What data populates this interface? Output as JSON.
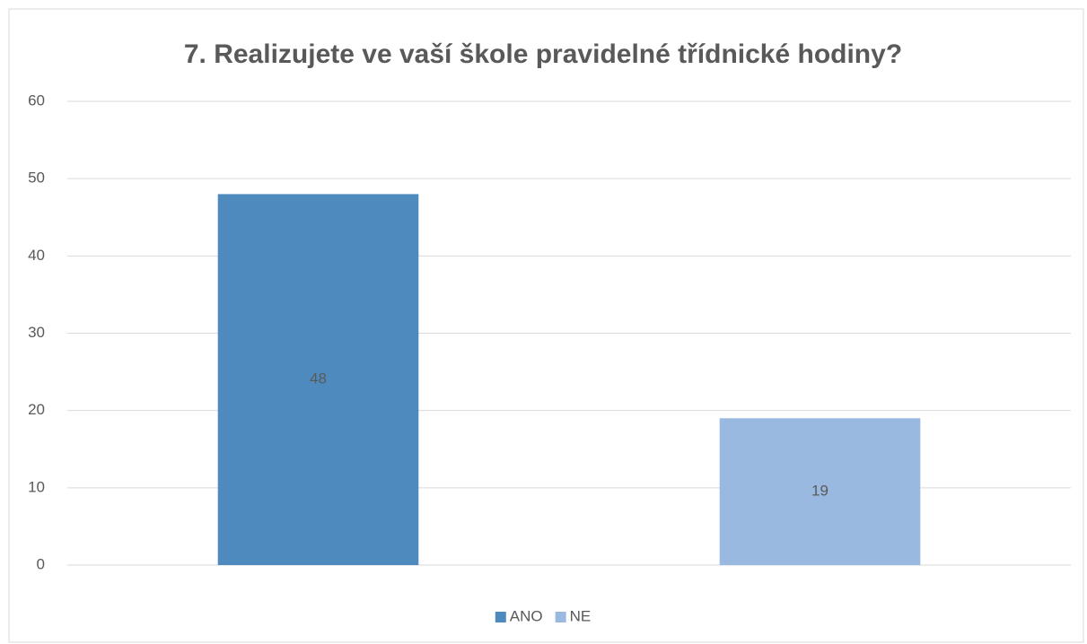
{
  "chart_data": {
    "type": "bar",
    "title": "7. Realizujete ve vaší škole pravidelné třídnické hodiny?",
    "categories": [
      null,
      null
    ],
    "series": [
      {
        "name": "ANO",
        "color": "#4f8abf",
        "values": [
          48,
          null
        ]
      },
      {
        "name": "NE",
        "color": "#9ab9e0",
        "values": [
          null,
          19
        ]
      }
    ],
    "ylim": [
      0,
      60
    ],
    "yticks": [
      0,
      10,
      20,
      30,
      40,
      50,
      60
    ],
    "grid": true,
    "legend": "bottom"
  }
}
